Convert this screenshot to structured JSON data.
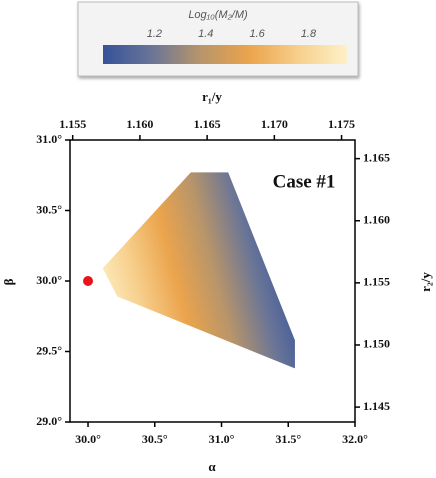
{
  "chart_data": {
    "type": "region",
    "colorbar": {
      "label": "Log₁₀(M₂/M)",
      "clim": [
        1.0,
        1.95
      ],
      "ticks": [
        1.2,
        1.4,
        1.6,
        1.8
      ],
      "colormap": [
        "#34539a",
        "#6a7597",
        "#b8956a",
        "#eba44c",
        "#f7cf8c",
        "#fdf1c8"
      ]
    },
    "xlabel": "α",
    "ylabel": "β",
    "x2label": "r₁/y",
    "y2label": "r₂/y",
    "annotation": "Case #1",
    "xlim": [
      29.865,
      32.0
    ],
    "ylim": [
      29.0,
      31.0
    ],
    "xticks": [
      {
        "value": 30.0,
        "label": "30.0°"
      },
      {
        "value": 30.5,
        "label": "30.5°"
      },
      {
        "value": 31.0,
        "label": "31.0°"
      },
      {
        "value": 31.5,
        "label": "31.5°"
      },
      {
        "value": 32.0,
        "label": "32.0°"
      }
    ],
    "yticks": [
      {
        "value": 29.0,
        "label": "29.0°"
      },
      {
        "value": 29.5,
        "label": "29.5°"
      },
      {
        "value": 30.0,
        "label": "30.0°"
      },
      {
        "value": 30.5,
        "label": "30.5°"
      },
      {
        "value": 31.0,
        "label": "31.0°"
      }
    ],
    "x2lim": [
      1.1548,
      1.176
    ],
    "x2ticks": [
      1.155,
      {
        "value": 1.16,
        "label": "1.160"
      },
      1.165,
      {
        "value": 1.17,
        "label": "1.170"
      },
      1.175
    ],
    "y2lim": [
      1.1438,
      1.1665
    ],
    "y2ticks": [
      1.145,
      {
        "value": 1.15,
        "label": "1.150"
      },
      1.155,
      {
        "value": 1.16,
        "label": "1.160"
      },
      1.165
    ],
    "region": {
      "x": [
        30.11,
        30.77,
        31.05,
        31.55,
        31.55,
        30.22
      ],
      "y": [
        30.09,
        30.77,
        30.77,
        29.58,
        29.38,
        29.89
      ]
    },
    "point": {
      "x": 30.0,
      "y": 30.0,
      "color": "#e8141a"
    }
  }
}
